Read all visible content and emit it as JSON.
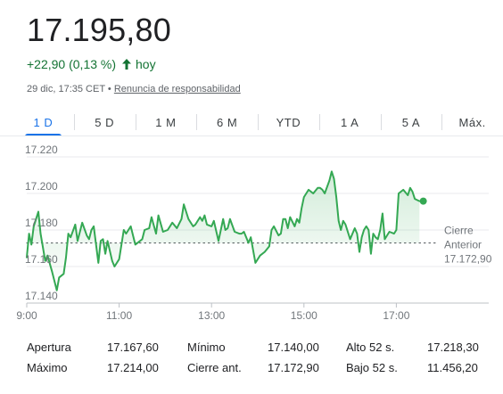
{
  "quote": {
    "price": "17.195,80",
    "change": "+22,90 (0,13 %)",
    "change_period": "hoy",
    "timestamp": "29 dic, 17:35 CET",
    "separator": "•",
    "disclaimer": "Renuncia de responsabilidad"
  },
  "tabs": [
    {
      "label": "1 D",
      "active": true
    },
    {
      "label": "5 D",
      "active": false
    },
    {
      "label": "1 M",
      "active": false
    },
    {
      "label": "6 M",
      "active": false
    },
    {
      "label": "YTD",
      "active": false
    },
    {
      "label": "1 A",
      "active": false
    },
    {
      "label": "5 A",
      "active": false
    },
    {
      "label": "Máx.",
      "active": false
    }
  ],
  "colors": {
    "up": "#137333",
    "line": "#34a853",
    "accent": "#1a73e8",
    "grid": "#e8eaed",
    "axis_text": "#70757a"
  },
  "chart_data": {
    "type": "line",
    "x_ticks": [
      "9:00",
      "11:00",
      "13:00",
      "15:00",
      "17:00"
    ],
    "y_ticks": [
      "17.220",
      "17.200",
      "17.180",
      "17.160",
      "17.140"
    ],
    "ylim": [
      17140,
      17220
    ],
    "xlim": [
      "9:00",
      "19:00"
    ],
    "previous_close": {
      "label_line1": "Cierre",
      "label_line2": "Anterior",
      "value_label": "17.172,90",
      "value": 17172.9
    },
    "series": [
      {
        "points": [
          [
            "9:00",
            17165
          ],
          [
            "9:03",
            17178
          ],
          [
            "9:06",
            17172
          ],
          [
            "9:09",
            17182
          ],
          [
            "9:15",
            17190
          ],
          [
            "9:18",
            17178
          ],
          [
            "9:24",
            17163
          ],
          [
            "9:27",
            17166
          ],
          [
            "9:33",
            17157
          ],
          [
            "9:39",
            17147
          ],
          [
            "9:42",
            17154
          ],
          [
            "9:48",
            17156
          ],
          [
            "9:51",
            17165
          ],
          [
            "9:54",
            17178
          ],
          [
            "9:57",
            17176
          ],
          [
            "10:03",
            17183
          ],
          [
            "10:06",
            17174
          ],
          [
            "10:12",
            17184
          ],
          [
            "10:18",
            17177
          ],
          [
            "10:21",
            17175
          ],
          [
            "10:24",
            17180
          ],
          [
            "10:27",
            17182
          ],
          [
            "10:33",
            17162
          ],
          [
            "10:36",
            17174
          ],
          [
            "10:39",
            17175
          ],
          [
            "10:42",
            17167
          ],
          [
            "10:45",
            17174
          ],
          [
            "10:51",
            17163
          ],
          [
            "10:54",
            17160
          ],
          [
            "11:00",
            17164
          ],
          [
            "11:06",
            17180
          ],
          [
            "11:09",
            17178
          ],
          [
            "11:15",
            17182
          ],
          [
            "11:21",
            17172
          ],
          [
            "11:24",
            17173
          ],
          [
            "11:30",
            17175
          ],
          [
            "11:33",
            17180
          ],
          [
            "11:39",
            17181
          ],
          [
            "11:42",
            17187
          ],
          [
            "11:48",
            17178
          ],
          [
            "11:51",
            17188
          ],
          [
            "11:57",
            17179
          ],
          [
            "12:03",
            17180
          ],
          [
            "12:09",
            17184
          ],
          [
            "12:15",
            17181
          ],
          [
            "12:21",
            17186
          ],
          [
            "12:24",
            17194
          ],
          [
            "12:27",
            17190
          ],
          [
            "12:30",
            17186
          ],
          [
            "12:36",
            17182
          ],
          [
            "12:39",
            17183
          ],
          [
            "12:45",
            17187
          ],
          [
            "12:48",
            17185
          ],
          [
            "12:51",
            17188
          ],
          [
            "12:54",
            17183
          ],
          [
            "13:00",
            17182
          ],
          [
            "13:03",
            17185
          ],
          [
            "13:09",
            17174
          ],
          [
            "13:15",
            17186
          ],
          [
            "13:18",
            17180
          ],
          [
            "13:21",
            17181
          ],
          [
            "13:24",
            17186
          ],
          [
            "13:30",
            17179
          ],
          [
            "13:36",
            17178
          ],
          [
            "13:39",
            17178
          ],
          [
            "13:42",
            17179
          ],
          [
            "13:48",
            17173
          ],
          [
            "13:51",
            17176
          ],
          [
            "13:57",
            17162
          ],
          [
            "14:03",
            17166
          ],
          [
            "14:09",
            17168
          ],
          [
            "14:15",
            17171
          ],
          [
            "14:18",
            17180
          ],
          [
            "14:21",
            17182
          ],
          [
            "14:27",
            17177
          ],
          [
            "14:30",
            17178
          ],
          [
            "14:33",
            17186
          ],
          [
            "14:36",
            17186
          ],
          [
            "14:39",
            17181
          ],
          [
            "14:42",
            17187
          ],
          [
            "14:48",
            17182
          ],
          [
            "14:51",
            17186
          ],
          [
            "14:54",
            17184
          ],
          [
            "14:57",
            17192
          ],
          [
            "15:00",
            17198
          ],
          [
            "15:06",
            17202
          ],
          [
            "15:12",
            17200
          ],
          [
            "15:18",
            17203
          ],
          [
            "15:21",
            17203
          ],
          [
            "15:24",
            17202
          ],
          [
            "15:27",
            17200
          ],
          [
            "15:33",
            17207
          ],
          [
            "15:36",
            17212
          ],
          [
            "15:39",
            17208
          ],
          [
            "15:42",
            17198
          ],
          [
            "15:45",
            17185
          ],
          [
            "15:48",
            17180
          ],
          [
            "15:51",
            17185
          ],
          [
            "15:54",
            17183
          ],
          [
            "16:00",
            17175
          ],
          [
            "16:06",
            17181
          ],
          [
            "16:09",
            17178
          ],
          [
            "16:12",
            17168
          ],
          [
            "16:15",
            17176
          ],
          [
            "16:18",
            17180
          ],
          [
            "16:21",
            17182
          ],
          [
            "16:24",
            17180
          ],
          [
            "16:27",
            17167
          ],
          [
            "16:30",
            17178
          ],
          [
            "16:33",
            17176
          ],
          [
            "16:36",
            17175
          ],
          [
            "16:39",
            17180
          ],
          [
            "16:42",
            17189
          ],
          [
            "16:45",
            17175
          ],
          [
            "16:48",
            17177
          ],
          [
            "16:51",
            17179
          ],
          [
            "16:57",
            17178
          ],
          [
            "17:00",
            17180
          ],
          [
            "17:03",
            17200
          ],
          [
            "17:09",
            17202
          ],
          [
            "17:15",
            17199
          ],
          [
            "17:18",
            17203
          ],
          [
            "17:21",
            17201
          ],
          [
            "17:24",
            17197
          ],
          [
            "17:30",
            17195.8
          ]
        ]
      }
    ],
    "last_point": [
      "17:35",
      17195.8
    ]
  },
  "stats": [
    [
      {
        "label": "Apertura",
        "value": "17.167,60"
      },
      {
        "label": "Mínimo",
        "value": "17.140,00"
      },
      {
        "label": "Alto 52 s.",
        "value": "17.218,30"
      }
    ],
    [
      {
        "label": "Máximo",
        "value": "17.214,00"
      },
      {
        "label": "Cierre ant.",
        "value": "17.172,90"
      },
      {
        "label": "Bajo 52 s.",
        "value": "11.456,20"
      }
    ]
  ]
}
